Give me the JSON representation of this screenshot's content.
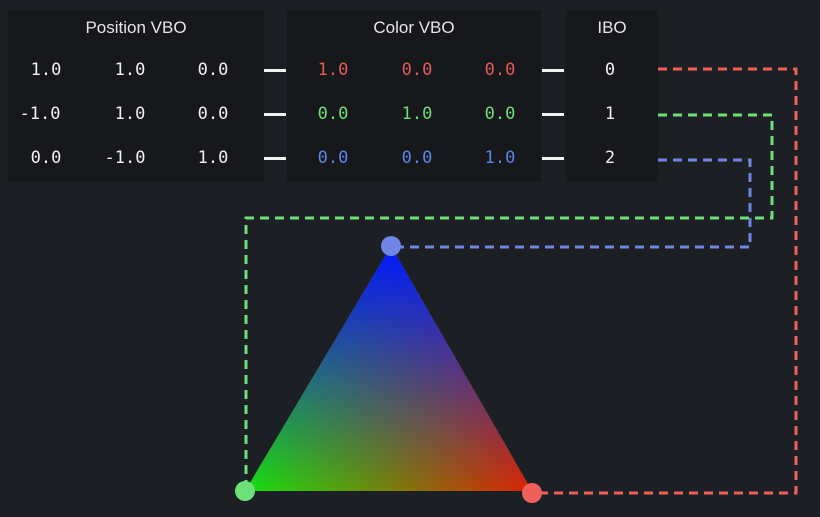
{
  "headers": {
    "position": "Position VBO",
    "color": "Color VBO",
    "ibo": "IBO"
  },
  "position_vbo": [
    [
      "1.0",
      "1.0",
      "0.0"
    ],
    [
      "-1.0",
      "1.0",
      "0.0"
    ],
    [
      "0.0",
      "-1.0",
      "1.0"
    ]
  ],
  "color_vbo": [
    [
      "1.0",
      "0.0",
      "0.0"
    ],
    [
      "0.0",
      "1.0",
      "0.0"
    ],
    [
      "0.0",
      "0.0",
      "1.0"
    ]
  ],
  "ibo": [
    "0",
    "1",
    "2"
  ],
  "colors": {
    "red": "#f0605a",
    "green": "#6ee07a",
    "blue": "#6f86e6",
    "text": "#f0f0f0",
    "background": "#1c1f23",
    "panel": "#16181b"
  }
}
